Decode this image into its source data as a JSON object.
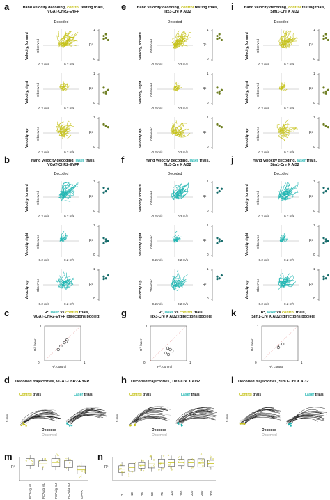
{
  "panels": {
    "a": "a",
    "b": "b",
    "c": "c",
    "d": "d",
    "e": "e",
    "f": "f",
    "g": "g",
    "h": "h",
    "i": "i",
    "j": "j",
    "k": "k",
    "l": "l",
    "m": "m",
    "n": "n"
  },
  "titles": {
    "control_prefix": "Hand velocity decoding, ",
    "control_word": "control",
    "control_suffix": " testing trials,",
    "laser_prefix": "Hand velocity decoding, ",
    "laser_word": "laser",
    "laser_suffix": " trials,",
    "line_vgat": "VGAT-ChR2-EYFP",
    "line_tlx": "Tlx3-Cre X Ai32",
    "line_sim": "Sim1-Cre X Ai32"
  },
  "labels": {
    "decoded": "Decoded",
    "observed": "Observed",
    "velocity_forward": "Velocity, forward",
    "velocity_right": "Velocity, right",
    "velocity_up": "Velocity, up",
    "tick_neg": "-0.2 m/s",
    "tick_pos": "0.2 m/s",
    "r2": "R²",
    "zero": "0",
    "one": "1"
  },
  "scatter_panels": {
    "r2_prefix": "R², ",
    "vs": " vs ",
    "trials": " trials,",
    "laser": "laser",
    "control": "control",
    "c_sub": "VGAT-ChR2-EYFP (directions pooled)",
    "g_sub": "Tlx3-Cre X Ai32 (directions pooled)",
    "k_sub": "Sim1-Cre X Ai32 (directions pooled)",
    "axis_x": "R², control",
    "axis_y": "R², laser"
  },
  "trajectories": {
    "d_title": "Decoded trajectories, VGAT-ChR2-EYFP",
    "h_title": "Decoded trajectories, Tlx3-Cre X Ai32",
    "l_title": "Decoded trajectories, Sim1-Cre X Ai32",
    "control_trials_word": "Control",
    "laser_trials_word": "Laser",
    "trials": " trials",
    "decoded": "Decoded",
    "observed": "Observed",
    "scale": "5 mm"
  },
  "m_categories": [
    "PCAuig MU",
    "PCAuig MU",
    "PCAuig SU",
    "PCAuig SU",
    "GPFA"
  ],
  "n_categories": [
    "2",
    "10",
    "25",
    "50",
    "75",
    "100",
    "150",
    "200",
    "250",
    "300"
  ],
  "chart_data": [
    {
      "type": "box",
      "panel": "m",
      "ylabel": "R²",
      "categories": [
        "PCAuig MU",
        "PCAuig MU",
        "PCAuig SU",
        "PCAuig SU",
        "GPFA"
      ],
      "series": [
        {
          "values": [
            0.78,
            0.7,
            0.76,
            0.69,
            0.45
          ]
        }
      ]
    },
    {
      "type": "box",
      "panel": "n",
      "ylabel": "R²",
      "categories": [
        "2",
        "10",
        "25",
        "50",
        "75",
        "100",
        "150",
        "200",
        "250",
        "300"
      ],
      "series": [
        {
          "values": [
            0.48,
            0.55,
            0.64,
            0.7,
            0.73,
            0.75,
            0.76,
            0.75,
            0.74,
            0.72
          ]
        }
      ]
    }
  ],
  "colors": {
    "control": "#c6c21b",
    "laser": "#1fb5b1",
    "dot_ctrl": "#6f7f23",
    "dot_laser": "#156b6a"
  }
}
